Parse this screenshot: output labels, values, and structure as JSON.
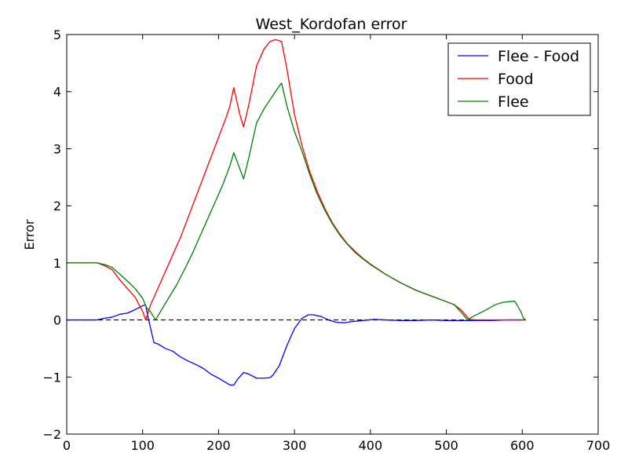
{
  "chart_data": {
    "type": "line",
    "title": "West_Kordofan error",
    "xlabel": "",
    "ylabel": "Error",
    "xlim": [
      0,
      700
    ],
    "ylim": [
      -2,
      5
    ],
    "xticks": [
      0,
      100,
      200,
      300,
      400,
      500,
      600,
      700
    ],
    "yticks": [
      -2,
      -1,
      0,
      1,
      2,
      3,
      4,
      5
    ],
    "ytick_labels": [
      "−2",
      "−1",
      "0",
      "1",
      "2",
      "3",
      "4",
      "5"
    ],
    "legend_position": "top-right",
    "reference_line": {
      "y": 0,
      "style": "dashed",
      "color": "#000000",
      "x_range": [
        0,
        605
      ]
    },
    "series": [
      {
        "name": "Flee - Food",
        "color": "#0000ff",
        "points": [
          [
            0,
            0
          ],
          [
            40,
            0
          ],
          [
            50,
            0.03
          ],
          [
            60,
            0.05
          ],
          [
            70,
            0.1
          ],
          [
            80,
            0.12
          ],
          [
            90,
            0.18
          ],
          [
            100,
            0.25
          ],
          [
            104,
            0.26
          ],
          [
            107,
            0.05
          ],
          [
            115,
            -0.4
          ],
          [
            120,
            -0.42
          ],
          [
            130,
            -0.5
          ],
          [
            140,
            -0.55
          ],
          [
            150,
            -0.65
          ],
          [
            160,
            -0.72
          ],
          [
            170,
            -0.78
          ],
          [
            180,
            -0.85
          ],
          [
            190,
            -0.95
          ],
          [
            200,
            -1.02
          ],
          [
            210,
            -1.1
          ],
          [
            215,
            -1.14
          ],
          [
            220,
            -1.14
          ],
          [
            225,
            -1.04
          ],
          [
            233,
            -0.92
          ],
          [
            240,
            -0.95
          ],
          [
            250,
            -1.02
          ],
          [
            260,
            -1.02
          ],
          [
            268,
            -1.01
          ],
          [
            272,
            -0.96
          ],
          [
            280,
            -0.8
          ],
          [
            290,
            -0.45
          ],
          [
            300,
            -0.15
          ],
          [
            310,
            0.03
          ],
          [
            318,
            0.09
          ],
          [
            325,
            0.09
          ],
          [
            335,
            0.06
          ],
          [
            345,
            0.0
          ],
          [
            355,
            -0.04
          ],
          [
            365,
            -0.05
          ],
          [
            375,
            -0.03
          ],
          [
            390,
            -0.01
          ],
          [
            405,
            0.01
          ],
          [
            420,
            0.0
          ],
          [
            440,
            -0.01
          ],
          [
            460,
            -0.01
          ],
          [
            480,
            0.0
          ],
          [
            500,
            -0.01
          ],
          [
            520,
            -0.01
          ],
          [
            540,
            -0.01
          ],
          [
            560,
            -0.01
          ],
          [
            580,
            0.0
          ],
          [
            600,
            0.0
          ]
        ]
      },
      {
        "name": "Food",
        "color": "#ff0000",
        "points": [
          [
            0,
            1.0
          ],
          [
            40,
            1.0
          ],
          [
            50,
            0.95
          ],
          [
            60,
            0.88
          ],
          [
            70,
            0.7
          ],
          [
            80,
            0.55
          ],
          [
            90,
            0.4
          ],
          [
            100,
            0.15
          ],
          [
            104,
            0.0
          ],
          [
            110,
            0.25
          ],
          [
            120,
            0.55
          ],
          [
            130,
            0.85
          ],
          [
            140,
            1.15
          ],
          [
            150,
            1.45
          ],
          [
            160,
            1.8
          ],
          [
            170,
            2.15
          ],
          [
            180,
            2.5
          ],
          [
            190,
            2.85
          ],
          [
            200,
            3.2
          ],
          [
            210,
            3.55
          ],
          [
            215,
            3.75
          ],
          [
            220,
            4.07
          ],
          [
            228,
            3.6
          ],
          [
            233,
            3.38
          ],
          [
            240,
            3.78
          ],
          [
            250,
            4.45
          ],
          [
            260,
            4.75
          ],
          [
            268,
            4.88
          ],
          [
            275,
            4.91
          ],
          [
            283,
            4.88
          ],
          [
            290,
            4.4
          ],
          [
            300,
            3.6
          ],
          [
            310,
            3.05
          ],
          [
            320,
            2.6
          ],
          [
            330,
            2.25
          ],
          [
            340,
            1.95
          ],
          [
            350,
            1.7
          ],
          [
            360,
            1.5
          ],
          [
            370,
            1.33
          ],
          [
            380,
            1.2
          ],
          [
            390,
            1.08
          ],
          [
            400,
            0.98
          ],
          [
            420,
            0.8
          ],
          [
            440,
            0.65
          ],
          [
            460,
            0.52
          ],
          [
            480,
            0.42
          ],
          [
            500,
            0.32
          ],
          [
            510,
            0.27
          ],
          [
            520,
            0.17
          ],
          [
            530,
            0.01
          ],
          [
            540,
            0.0
          ],
          [
            560,
            0.0
          ],
          [
            580,
            0.0
          ],
          [
            600,
            0.0
          ],
          [
            605,
            0.0
          ]
        ]
      },
      {
        "name": "Flee",
        "color": "#008000",
        "points": [
          [
            0,
            1.0
          ],
          [
            40,
            1.0
          ],
          [
            50,
            0.97
          ],
          [
            60,
            0.92
          ],
          [
            70,
            0.8
          ],
          [
            80,
            0.68
          ],
          [
            90,
            0.55
          ],
          [
            100,
            0.38
          ],
          [
            105,
            0.22
          ],
          [
            110,
            0.15
          ],
          [
            117,
            0.0
          ],
          [
            125,
            0.18
          ],
          [
            135,
            0.4
          ],
          [
            145,
            0.62
          ],
          [
            155,
            0.88
          ],
          [
            165,
            1.15
          ],
          [
            175,
            1.45
          ],
          [
            185,
            1.75
          ],
          [
            195,
            2.05
          ],
          [
            205,
            2.35
          ],
          [
            215,
            2.7
          ],
          [
            220,
            2.93
          ],
          [
            228,
            2.65
          ],
          [
            233,
            2.47
          ],
          [
            240,
            2.85
          ],
          [
            250,
            3.45
          ],
          [
            260,
            3.7
          ],
          [
            270,
            3.9
          ],
          [
            279,
            4.08
          ],
          [
            283,
            4.15
          ],
          [
            290,
            3.75
          ],
          [
            300,
            3.3
          ],
          [
            310,
            2.95
          ],
          [
            320,
            2.55
          ],
          [
            330,
            2.2
          ],
          [
            340,
            1.92
          ],
          [
            350,
            1.68
          ],
          [
            360,
            1.48
          ],
          [
            370,
            1.32
          ],
          [
            380,
            1.18
          ],
          [
            390,
            1.07
          ],
          [
            400,
            0.97
          ],
          [
            420,
            0.8
          ],
          [
            440,
            0.65
          ],
          [
            460,
            0.52
          ],
          [
            480,
            0.42
          ],
          [
            500,
            0.32
          ],
          [
            510,
            0.27
          ],
          [
            520,
            0.13
          ],
          [
            528,
            0.0
          ],
          [
            535,
            0.06
          ],
          [
            550,
            0.16
          ],
          [
            565,
            0.27
          ],
          [
            575,
            0.31
          ],
          [
            590,
            0.33
          ],
          [
            598,
            0.15
          ],
          [
            602,
            0.02
          ],
          [
            605,
            0.0
          ]
        ]
      }
    ]
  }
}
